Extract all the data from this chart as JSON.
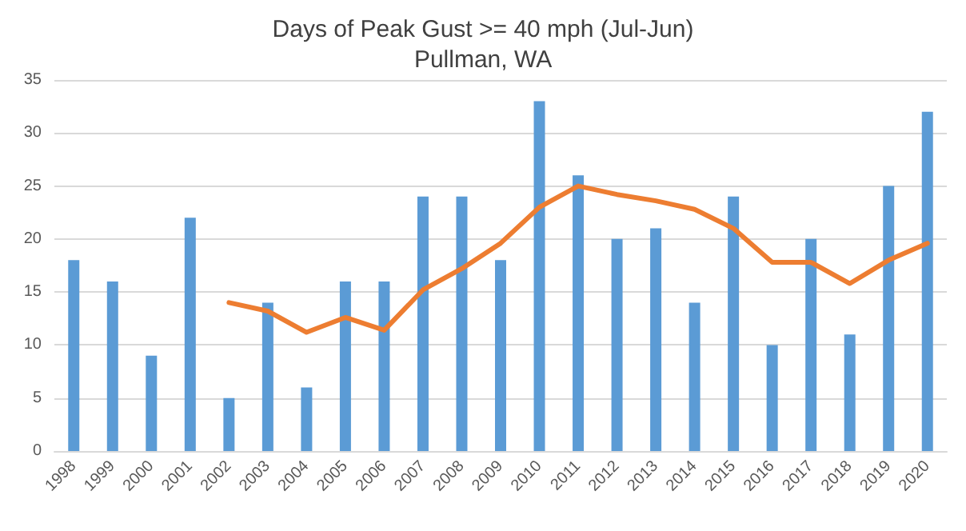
{
  "chart_data": {
    "type": "bar",
    "title": "Days of Peak Gust >= 40 mph (Jul-Jun)",
    "subtitle": "Pullman, WA",
    "categories": [
      "1998",
      "1999",
      "2000",
      "2001",
      "2002",
      "2003",
      "2004",
      "2005",
      "2006",
      "2007",
      "2008",
      "2009",
      "2010",
      "2011",
      "2012",
      "2013",
      "2014",
      "2015",
      "2016",
      "2017",
      "2018",
      "2019",
      "2020"
    ],
    "series": [
      {
        "color": "#5b9bd5",
        "values": [
          18,
          16,
          9,
          22,
          5,
          14,
          6,
          16,
          16,
          24,
          24,
          18,
          33,
          26,
          20,
          21,
          14,
          24,
          10,
          20,
          11,
          25,
          32
        ]
      },
      {
        "type": "line",
        "color": "#ed7d31",
        "values": [
          null,
          null,
          null,
          null,
          14,
          13.2,
          11.2,
          12.6,
          11.4,
          15.2,
          17.2,
          19.6,
          23,
          25,
          24.2,
          23.6,
          22.8,
          21,
          17.8,
          17.8,
          15.8,
          18,
          19.6
        ]
      }
    ],
    "ylim": [
      0,
      35
    ],
    "yticks": [
      0,
      5,
      10,
      15,
      20,
      25,
      30,
      35
    ],
    "grid": "y",
    "marker": "none"
  }
}
